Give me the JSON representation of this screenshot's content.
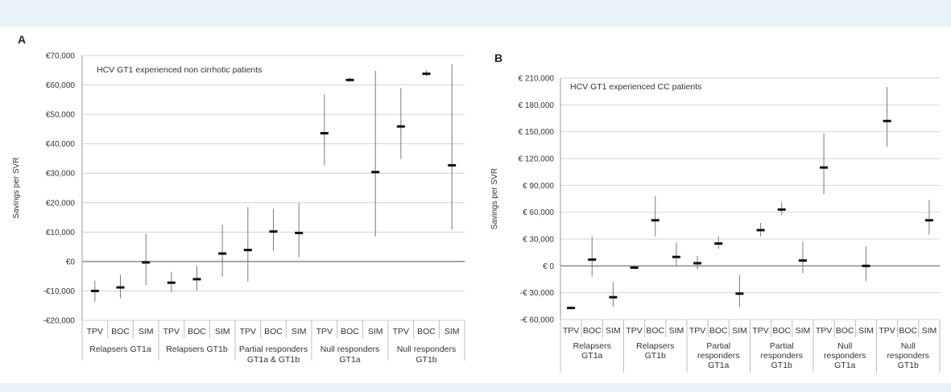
{
  "chart_data": [
    {
      "panel_label": "A",
      "type": "error-bar",
      "title": "HCV GT1 experienced non cirrhotic patients",
      "ylabel": "Savings per SVR",
      "ylim": [
        -20000,
        70000
      ],
      "y_ticks": [
        -20000,
        -10000,
        0,
        10000,
        20000,
        30000,
        40000,
        50000,
        60000,
        70000
      ],
      "y_tick_labels": [
        "-€20,000",
        "-€10,000",
        "€0",
        "€10,000",
        "€20,000",
        "€30,000",
        "€40,000",
        "€50,000",
        "€60,000",
        "€70,000"
      ],
      "groups": [
        {
          "label": "Relapsers GT1a",
          "categories": [
            "TPV",
            "BOC",
            "SIM"
          ],
          "values": [
            -10000,
            -8800,
            -300
          ],
          "lows": [
            -13700,
            -12500,
            -8000
          ],
          "highs": [
            -6500,
            -4500,
            9500
          ]
        },
        {
          "label": "Relapsers GT1b",
          "categories": [
            "TPV",
            "BOC",
            "SIM"
          ],
          "values": [
            -7200,
            -6000,
            2700
          ],
          "lows": [
            -10500,
            -9800,
            -5200
          ],
          "highs": [
            -3500,
            -1500,
            12500
          ]
        },
        {
          "label": "Partial responders GT1a & GT1b",
          "categories": [
            "TPV",
            "BOC",
            "SIM"
          ],
          "values": [
            3900,
            10200,
            9700
          ],
          "lows": [
            -6800,
            3600,
            1500
          ],
          "highs": [
            18500,
            17900,
            19900
          ]
        },
        {
          "label": "Null responders GT1a",
          "categories": [
            "TPV",
            "BOC",
            "SIM"
          ],
          "values": [
            43600,
            61700,
            30400
          ],
          "lows": [
            32600,
            61000,
            8500
          ],
          "highs": [
            56800,
            62500,
            64800
          ]
        },
        {
          "label": "Null responders GT1b",
          "categories": [
            "TPV",
            "BOC",
            "SIM"
          ],
          "values": [
            45900,
            63800,
            32700
          ],
          "lows": [
            34800,
            63000,
            10800
          ],
          "highs": [
            59000,
            65000,
            67000
          ]
        }
      ]
    },
    {
      "panel_label": "B",
      "type": "error-bar",
      "title": "HCV GT1 experienced CC patients",
      "ylabel": "Savings per SVR",
      "ylim": [
        -60000,
        210000
      ],
      "y_ticks": [
        -60000,
        -30000,
        0,
        30000,
        60000,
        90000,
        120000,
        150000,
        180000,
        210000
      ],
      "y_tick_labels": [
        "-€ 60,000",
        "-€ 30,000",
        "€ 0",
        "€ 30,000",
        "€ 60,000",
        "€ 90,000",
        "€ 120,000",
        "€ 150,000",
        "€ 180,000",
        "€ 210,000"
      ],
      "groups": [
        {
          "label": "Relapsers GT1a",
          "categories": [
            "TPV",
            "BOC",
            "SIM"
          ],
          "values": [
            -47000,
            7000,
            -35000
          ],
          "lows": [
            -48000,
            -12000,
            -46000
          ],
          "highs": [
            -46000,
            33000,
            -18000
          ]
        },
        {
          "label": "Relapsers GT1b",
          "categories": [
            "TPV",
            "BOC",
            "SIM"
          ],
          "values": [
            -2000,
            51000,
            10000
          ],
          "lows": [
            -3000,
            33000,
            0
          ],
          "highs": [
            0,
            78000,
            26000
          ]
        },
        {
          "label": "Partial responders GT1a",
          "categories": [
            "TPV",
            "BOC",
            "SIM"
          ],
          "values": [
            3000,
            25000,
            -31000
          ],
          "lows": [
            -4000,
            19000,
            -46000
          ],
          "highs": [
            11000,
            33000,
            -10000
          ]
        },
        {
          "label": "Partial responders GT1b",
          "categories": [
            "TPV",
            "BOC",
            "SIM"
          ],
          "values": [
            40000,
            63000,
            6000
          ],
          "lows": [
            33000,
            57000,
            -8000
          ],
          "highs": [
            48000,
            71000,
            27000
          ]
        },
        {
          "label": "Null responders GT1a",
          "categories": [
            "TPV",
            "BOC",
            "SIM"
          ],
          "values": [
            110000,
            null,
            0
          ],
          "lows": [
            80000,
            null,
            -17000
          ],
          "highs": [
            148000,
            null,
            22000
          ]
        },
        {
          "label": "Null responders GT1b",
          "categories": [
            "TPV",
            "BOC",
            "SIM"
          ],
          "values": [
            162000,
            null,
            51000
          ],
          "lows": [
            133000,
            null,
            35000
          ],
          "highs": [
            200000,
            null,
            74000
          ]
        }
      ]
    }
  ]
}
